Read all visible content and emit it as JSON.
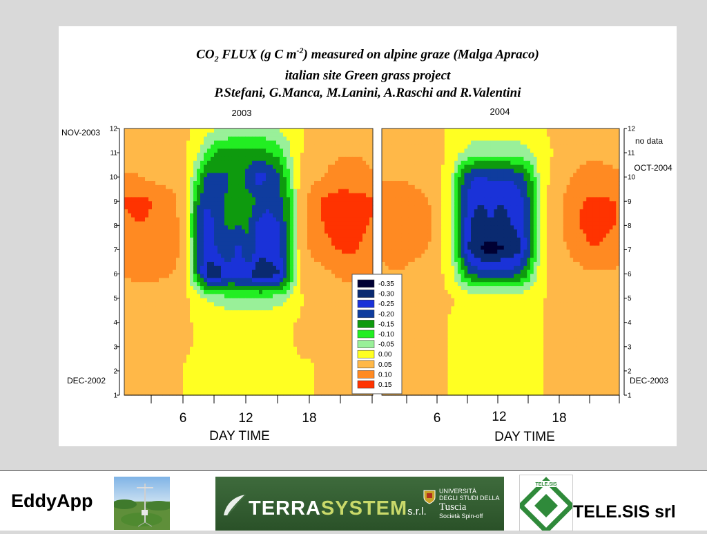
{
  "slide": {
    "title": {
      "prefix": "CO",
      "sub": "2",
      "mid": " FLUX (g C m",
      "sup": "-2",
      "suffix": ") measured on alpine graze (Malga Apraco)",
      "line2": "italian site Green grass project",
      "line3": "P.Stefani, G.Manca, M.Lanini, A.Raschi and R.Valentini"
    }
  },
  "chart_data": [
    {
      "type": "heatmap",
      "panel": "2003",
      "title": "2003",
      "xlabel": "DAY TIME",
      "x_ticks": [
        6,
        12,
        18
      ],
      "xlim": [
        0,
        24
      ],
      "y_ticks": [
        1,
        2,
        3,
        4,
        5,
        6,
        7,
        8,
        9,
        10,
        11,
        12
      ],
      "ylim": [
        1,
        12
      ],
      "y_annotations": {
        "top": "NOV-2003",
        "bottom": "DEC-2002"
      },
      "z": {
        "hours": [
          0,
          1,
          2,
          3,
          4,
          5,
          6,
          7,
          8,
          9,
          10,
          11,
          12,
          13,
          14,
          15,
          16,
          17,
          18,
          19,
          20,
          21,
          22,
          23,
          24
        ],
        "months": [
          1,
          2,
          3,
          4,
          5,
          6,
          7,
          8,
          9,
          10,
          11,
          12
        ],
        "values": [
          [
            0.03,
            0.03,
            0.03,
            0.03,
            0.03,
            0.03,
            0.02,
            0.0,
            0.0,
            0.01,
            0.02,
            0.02,
            0.02,
            0.02,
            0.02,
            0.02,
            0.01,
            0.01,
            0.02,
            0.03,
            0.03,
            0.03,
            0.03,
            0.03,
            0.03
          ],
          [
            0.03,
            0.03,
            0.03,
            0.03,
            0.03,
            0.03,
            0.02,
            0.0,
            0.0,
            0.0,
            0.01,
            0.01,
            0.01,
            0.01,
            0.01,
            0.01,
            0.01,
            0.02,
            0.02,
            0.03,
            0.03,
            0.03,
            0.03,
            0.03,
            0.03
          ],
          [
            0.03,
            0.03,
            0.03,
            0.03,
            0.03,
            0.03,
            0.03,
            0.02,
            0.02,
            0.02,
            0.02,
            0.02,
            0.02,
            0.02,
            0.02,
            0.02,
            0.02,
            0.03,
            0.03,
            0.03,
            0.03,
            0.03,
            0.03,
            0.03,
            0.03
          ],
          [
            0.03,
            0.03,
            0.03,
            0.03,
            0.03,
            0.03,
            0.03,
            0.02,
            0.02,
            0.02,
            0.02,
            0.02,
            0.02,
            0.02,
            0.02,
            0.02,
            0.02,
            0.03,
            0.03,
            0.03,
            0.03,
            0.03,
            0.03,
            0.03,
            0.03
          ],
          [
            0.04,
            0.04,
            0.04,
            0.04,
            0.04,
            0.04,
            0.03,
            0.01,
            -0.03,
            -0.05,
            -0.06,
            -0.06,
            -0.06,
            -0.06,
            -0.06,
            -0.05,
            -0.02,
            0.02,
            0.03,
            0.03,
            0.03,
            0.04,
            0.04,
            0.04,
            0.04
          ],
          [
            0.08,
            0.09,
            0.09,
            0.09,
            0.08,
            0.07,
            0.02,
            -0.16,
            -0.3,
            -0.31,
            -0.25,
            -0.26,
            -0.26,
            -0.33,
            -0.3,
            -0.28,
            -0.15,
            0.05,
            0.05,
            0.06,
            0.07,
            0.09,
            0.1,
            0.1,
            0.09
          ],
          [
            0.1,
            0.11,
            0.12,
            0.12,
            0.1,
            0.09,
            0.03,
            -0.17,
            -0.26,
            -0.22,
            -0.18,
            -0.25,
            -0.17,
            -0.25,
            -0.25,
            -0.22,
            -0.15,
            0.06,
            0.08,
            0.1,
            0.12,
            0.13,
            0.13,
            0.12,
            0.11
          ],
          [
            0.11,
            0.12,
            0.12,
            0.11,
            0.1,
            0.09,
            0.02,
            -0.18,
            -0.27,
            -0.2,
            -0.17,
            -0.17,
            -0.17,
            -0.25,
            -0.27,
            -0.22,
            -0.14,
            0.06,
            0.09,
            0.12,
            0.14,
            0.15,
            0.14,
            0.13,
            0.12
          ],
          [
            0.13,
            0.14,
            0.14,
            0.12,
            0.1,
            0.08,
            0.02,
            -0.16,
            -0.22,
            -0.18,
            -0.17,
            -0.17,
            -0.16,
            -0.18,
            -0.2,
            -0.19,
            -0.12,
            0.06,
            0.09,
            0.13,
            0.14,
            0.15,
            0.14,
            0.14,
            0.13
          ],
          [
            0.08,
            0.08,
            0.07,
            0.06,
            0.06,
            0.05,
            0.03,
            -0.08,
            -0.2,
            -0.18,
            -0.18,
            -0.15,
            -0.2,
            -0.25,
            -0.22,
            -0.18,
            -0.08,
            0.04,
            0.06,
            0.07,
            0.09,
            0.1,
            0.1,
            0.09,
            0.08
          ],
          [
            0.06,
            0.06,
            0.06,
            0.06,
            0.06,
            0.05,
            0.03,
            -0.01,
            -0.08,
            -0.14,
            -0.14,
            -0.14,
            -0.14,
            -0.14,
            -0.13,
            -0.1,
            -0.03,
            0.02,
            0.05,
            0.06,
            0.06,
            0.07,
            0.07,
            0.07,
            0.06
          ],
          [
            0.05,
            0.05,
            0.05,
            0.05,
            0.05,
            0.04,
            0.03,
            0.01,
            0.0,
            -0.02,
            -0.03,
            -0.04,
            -0.04,
            -0.04,
            -0.03,
            -0.02,
            0.0,
            0.02,
            0.04,
            0.05,
            0.05,
            0.05,
            0.05,
            0.05,
            0.05
          ]
        ]
      }
    },
    {
      "type": "heatmap",
      "panel": "2004",
      "title": "2004",
      "xlabel": "DAY TIME",
      "x_ticks": [
        6,
        12,
        18
      ],
      "xlim": [
        0,
        24
      ],
      "y_ticks": [
        1,
        2,
        3,
        4,
        5,
        6,
        7,
        8,
        9,
        10,
        11,
        12
      ],
      "ylim": [
        1,
        12
      ],
      "y_annotations": {
        "top": "no data",
        "upper": "OCT-2004",
        "bottom": "DEC-2003"
      },
      "z": {
        "hours": [
          0,
          1,
          2,
          3,
          4,
          5,
          6,
          7,
          8,
          9,
          10,
          11,
          12,
          13,
          14,
          15,
          16,
          17,
          18,
          19,
          20,
          21,
          22,
          23,
          24
        ],
        "months": [
          1,
          2,
          3,
          4,
          5,
          6,
          7,
          8,
          9,
          10,
          11,
          12
        ],
        "values": [
          [
            0.03,
            0.03,
            0.03,
            0.03,
            0.03,
            0.03,
            0.03,
            0.02,
            0.02,
            0.02,
            0.02,
            0.02,
            0.02,
            0.02,
            0.02,
            0.02,
            0.02,
            0.03,
            0.03,
            0.03,
            0.03,
            0.03,
            0.03,
            0.03,
            0.03
          ],
          [
            0.03,
            0.03,
            0.03,
            0.03,
            0.03,
            0.03,
            0.03,
            0.02,
            0.02,
            0.02,
            0.02,
            0.02,
            0.02,
            0.02,
            0.02,
            0.02,
            0.02,
            0.03,
            0.03,
            0.03,
            0.03,
            0.03,
            0.03,
            0.03,
            0.03
          ],
          [
            0.03,
            0.03,
            0.03,
            0.03,
            0.03,
            0.03,
            0.03,
            0.02,
            0.02,
            0.02,
            0.02,
            0.02,
            0.02,
            0.02,
            0.02,
            0.02,
            0.02,
            0.03,
            0.03,
            0.03,
            0.03,
            0.03,
            0.03,
            0.03,
            0.03
          ],
          [
            0.03,
            0.03,
            0.03,
            0.03,
            0.03,
            0.03,
            0.03,
            0.02,
            0.02,
            0.02,
            0.02,
            0.02,
            0.02,
            0.02,
            0.02,
            0.02,
            0.02,
            0.03,
            0.03,
            0.03,
            0.03,
            0.03,
            0.03,
            0.03,
            0.03
          ],
          [
            0.03,
            0.03,
            0.03,
            0.03,
            0.03,
            0.03,
            0.03,
            0.03,
            0.02,
            0.02,
            0.02,
            0.02,
            0.02,
            0.02,
            0.02,
            0.02,
            0.02,
            0.03,
            0.03,
            0.03,
            0.03,
            0.03,
            0.03,
            0.03,
            0.03
          ],
          [
            0.06,
            0.07,
            0.07,
            0.06,
            0.06,
            0.05,
            0.03,
            0.0,
            -0.1,
            -0.18,
            -0.2,
            -0.2,
            -0.2,
            -0.2,
            -0.18,
            -0.1,
            0.0,
            0.03,
            0.04,
            0.05,
            0.06,
            0.07,
            0.07,
            0.07,
            0.06
          ],
          [
            0.09,
            0.1,
            0.1,
            0.09,
            0.08,
            0.07,
            0.03,
            -0.02,
            -0.18,
            -0.3,
            -0.33,
            -0.35,
            -0.33,
            -0.32,
            -0.28,
            -0.18,
            -0.02,
            0.04,
            0.06,
            0.08,
            0.1,
            0.12,
            0.12,
            0.11,
            0.1
          ],
          [
            0.1,
            0.11,
            0.11,
            0.1,
            0.09,
            0.08,
            0.03,
            -0.02,
            -0.18,
            -0.28,
            -0.3,
            -0.28,
            -0.3,
            -0.28,
            -0.26,
            -0.18,
            -0.02,
            0.04,
            0.07,
            0.1,
            0.13,
            0.14,
            0.14,
            0.13,
            0.12
          ],
          [
            0.12,
            0.12,
            0.11,
            0.1,
            0.09,
            0.07,
            0.03,
            -0.02,
            -0.17,
            -0.26,
            -0.27,
            -0.26,
            -0.27,
            -0.26,
            -0.24,
            -0.17,
            -0.02,
            0.04,
            0.07,
            0.1,
            0.12,
            0.13,
            0.13,
            0.13,
            0.12
          ],
          [
            0.07,
            0.07,
            0.07,
            0.06,
            0.06,
            0.05,
            0.03,
            -0.01,
            -0.16,
            -0.22,
            -0.23,
            -0.22,
            -0.22,
            -0.22,
            -0.2,
            -0.14,
            -0.01,
            0.03,
            0.05,
            0.07,
            0.09,
            0.1,
            0.1,
            0.09,
            0.08
          ],
          [
            0.06,
            0.06,
            0.06,
            0.06,
            0.05,
            0.05,
            0.03,
            0.01,
            -0.02,
            -0.05,
            -0.06,
            -0.06,
            -0.06,
            -0.06,
            -0.05,
            -0.03,
            0.01,
            0.02,
            0.04,
            0.05,
            0.06,
            0.06,
            0.06,
            0.06,
            0.06
          ],
          [
            0.04,
            0.04,
            0.04,
            0.04,
            0.04,
            0.04,
            0.03,
            0.02,
            0.01,
            0.01,
            0.01,
            0.01,
            0.01,
            0.01,
            0.01,
            0.01,
            0.02,
            0.03,
            0.04,
            0.04,
            0.04,
            0.04,
            0.04,
            0.04,
            0.04
          ]
        ]
      }
    }
  ],
  "legend": {
    "levels": [
      {
        "label": "-0.35",
        "color": "#000033"
      },
      {
        "label": "-0.30",
        "color": "#0a2a70"
      },
      {
        "label": "-0.25",
        "color": "#1a32d8"
      },
      {
        "label": "-0.20",
        "color": "#0f3c9e"
      },
      {
        "label": "-0.15",
        "color": "#0e9a0e"
      },
      {
        "label": "-0.10",
        "color": "#22ee22"
      },
      {
        "label": "-0.05",
        "color": "#99f099"
      },
      {
        "label": "0.00",
        "color": "#ffff22"
      },
      {
        "label": "0.05",
        "color": "#ffb848"
      },
      {
        "label": "0.10",
        "color": "#ff8a22"
      },
      {
        "label": "0.15",
        "color": "#ff3300"
      }
    ]
  },
  "footer": {
    "left_label": "EddyApp",
    "banner_word_a": "TERRA",
    "banner_word_b": "SYSTEM",
    "banner_srl": "s.r.l.",
    "uni_line1": "UNIVERSITÀ",
    "uni_line2": "DEGLI STUDI DELLA",
    "uni_line3": "Tuscia",
    "uni_line4": "Società Spin-off",
    "logo_text": "TELE.SIS",
    "right_label": "TELE.SIS srl"
  }
}
